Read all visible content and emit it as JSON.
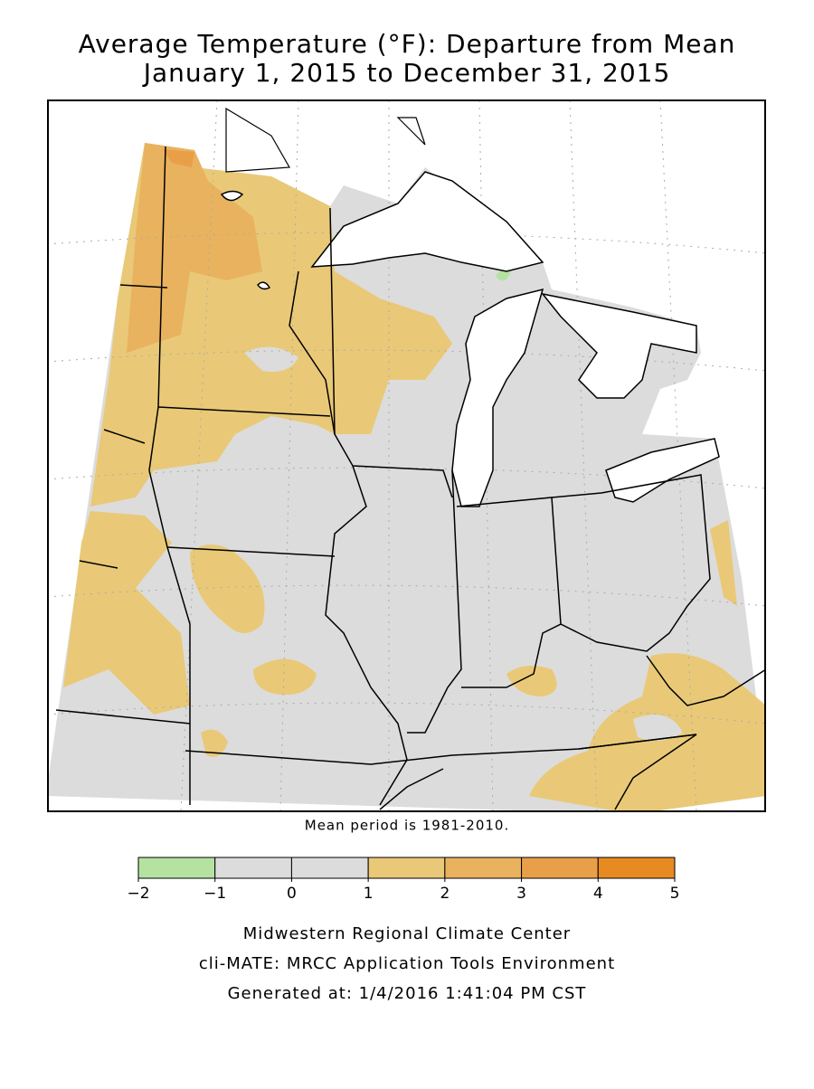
{
  "header": {
    "title": "Average Temperature (°F): Departure from Mean",
    "subtitle": "January 1, 2015 to December 31, 2015"
  },
  "map": {
    "note": "Mean period is 1981-2010."
  },
  "legend": {
    "ticks": [
      {
        "value": -2,
        "label": "−2"
      },
      {
        "value": -1,
        "label": "−1"
      },
      0,
      1,
      2,
      3,
      4,
      5
    ],
    "colors": [
      "#b5e2a0",
      "#dcdcdc",
      "#dcdcdc",
      "#e9c977",
      "#e9b25e",
      "#e99f48",
      "#e88a22"
    ]
  },
  "footer": {
    "lines": [
      "Midwestern Regional Climate Center",
      "cli-MATE: MRCC Application Tools Environment",
      "Generated at: 1/4/2016 1:41:04 PM CST"
    ]
  }
}
